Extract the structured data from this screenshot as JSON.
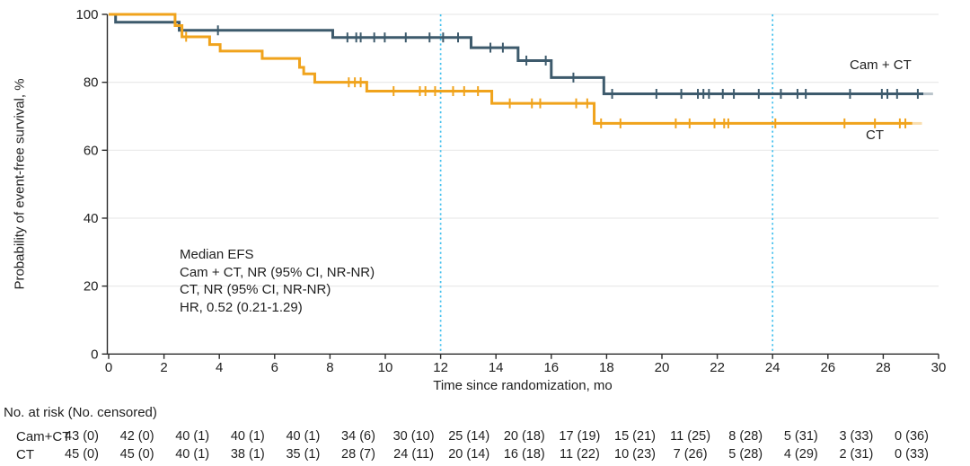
{
  "figure_title": "Event-free survival Kaplan-Meier plot",
  "colors": {
    "series_cam": "#3d5a6c",
    "series_ct": "#f0a31c",
    "reference_line": "#41bfed",
    "grid": "#e9e9e9",
    "axis": "#2b2b2b",
    "text": "#1f1f1f"
  },
  "chart_data": {
    "type": "line",
    "subtype": "kaplan-meier-step",
    "xlabel": "Time since randomization, mo",
    "ylabel": "Probability of event-free survival, %",
    "xlim": [
      0,
      30
    ],
    "ylim": [
      0,
      100
    ],
    "xticks": [
      0,
      2,
      4,
      6,
      8,
      10,
      12,
      14,
      16,
      18,
      20,
      22,
      24,
      26,
      28,
      30
    ],
    "yticks": [
      0,
      20,
      40,
      60,
      80,
      100
    ],
    "grid": "horizontal-light",
    "reference_lines_x": [
      12,
      24
    ],
    "legend_position": "curve-end-labels",
    "annotation": {
      "lines": [
        "Median EFS",
        "Cam + CT, NR (95% CI, NR-NR)",
        "CT, NR (95% CI, NR-NR)",
        "HR, 0.52 (0.21-1.29)"
      ]
    },
    "series": [
      {
        "name": "Cam + CT",
        "color": "#3d5a6c",
        "end_t": 29.45,
        "fade_end_t": 29.8,
        "steps": [
          [
            0,
            100
          ],
          [
            0.25,
            97.7
          ],
          [
            2.55,
            95.3
          ],
          [
            8.1,
            93.2
          ],
          [
            13.1,
            90.2
          ],
          [
            14.8,
            86.4
          ],
          [
            16.0,
            81.4
          ],
          [
            17.9,
            76.6
          ]
        ],
        "censors": [
          [
            3.95,
            95.3
          ],
          [
            8.63,
            93.2
          ],
          [
            8.95,
            93.2
          ],
          [
            9.11,
            93.2
          ],
          [
            9.6,
            93.2
          ],
          [
            9.98,
            93.2
          ],
          [
            10.74,
            93.2
          ],
          [
            11.6,
            93.2
          ],
          [
            12.09,
            93.2
          ],
          [
            12.63,
            93.2
          ],
          [
            13.8,
            90.2
          ],
          [
            14.25,
            90.2
          ],
          [
            15.1,
            86.4
          ],
          [
            15.8,
            86.4
          ],
          [
            16.8,
            81.4
          ],
          [
            18.2,
            76.6
          ],
          [
            19.8,
            76.6
          ],
          [
            20.7,
            76.6
          ],
          [
            21.3,
            76.6
          ],
          [
            21.5,
            76.6
          ],
          [
            21.7,
            76.6
          ],
          [
            22.2,
            76.6
          ],
          [
            22.6,
            76.6
          ],
          [
            23.5,
            76.6
          ],
          [
            24.3,
            76.6
          ],
          [
            24.9,
            76.6
          ],
          [
            25.2,
            76.6
          ],
          [
            26.8,
            76.6
          ],
          [
            27.95,
            76.6
          ],
          [
            28.15,
            76.6
          ],
          [
            28.5,
            76.6
          ],
          [
            29.25,
            76.6
          ]
        ]
      },
      {
        "name": "CT",
        "color": "#f0a31c",
        "end_t": 29.05,
        "fade_end_t": 29.4,
        "steps": [
          [
            0,
            100
          ],
          [
            2.4,
            96.7
          ],
          [
            2.65,
            93.4
          ],
          [
            3.65,
            91.1
          ],
          [
            4.03,
            89.2
          ],
          [
            5.55,
            87.0
          ],
          [
            6.9,
            84.4
          ],
          [
            7.05,
            82.5
          ],
          [
            7.45,
            80.0
          ],
          [
            9.33,
            77.4
          ],
          [
            13.85,
            73.8
          ],
          [
            17.55,
            67.9
          ]
        ],
        "censors": [
          [
            2.8,
            93.4
          ],
          [
            8.68,
            80.0
          ],
          [
            8.9,
            80.0
          ],
          [
            9.11,
            80.0
          ],
          [
            10.3,
            77.4
          ],
          [
            11.25,
            77.4
          ],
          [
            11.45,
            77.4
          ],
          [
            11.8,
            77.4
          ],
          [
            12.45,
            77.4
          ],
          [
            12.85,
            77.4
          ],
          [
            13.35,
            77.4
          ],
          [
            14.5,
            73.8
          ],
          [
            15.3,
            73.8
          ],
          [
            15.6,
            73.8
          ],
          [
            16.9,
            73.8
          ],
          [
            17.3,
            73.8
          ],
          [
            17.8,
            67.9
          ],
          [
            18.5,
            67.9
          ],
          [
            20.5,
            67.9
          ],
          [
            21.0,
            67.9
          ],
          [
            21.9,
            67.9
          ],
          [
            22.25,
            67.9
          ],
          [
            22.4,
            67.9
          ],
          [
            24.1,
            67.9
          ],
          [
            26.6,
            67.9
          ],
          [
            27.7,
            67.9
          ],
          [
            28.6,
            67.9
          ],
          [
            28.8,
            67.9
          ]
        ]
      }
    ]
  },
  "risk_table": {
    "header": "No. at risk (No. censored)",
    "times": [
      0,
      2,
      4,
      6,
      8,
      10,
      12,
      14,
      16,
      18,
      20,
      22,
      24,
      26,
      28,
      30
    ],
    "rows": [
      {
        "label": "Cam+CT",
        "values": [
          "43 (0)",
          "42 (0)",
          "40 (1)",
          "40 (1)",
          "40 (1)",
          "34 (6)",
          "30 (10)",
          "25 (14)",
          "20 (18)",
          "17 (19)",
          "15 (21)",
          "11 (25)",
          "8 (28)",
          "5 (31)",
          "3 (33)",
          "0 (36)"
        ]
      },
      {
        "label": "CT",
        "values": [
          "45 (0)",
          "45 (0)",
          "40 (1)",
          "38 (1)",
          "35 (1)",
          "28 (7)",
          "24 (11)",
          "20 (14)",
          "16 (18)",
          "11 (22)",
          "10 (23)",
          "7 (26)",
          "5 (28)",
          "4 (29)",
          "2 (31)",
          "0 (33)"
        ]
      }
    ]
  }
}
